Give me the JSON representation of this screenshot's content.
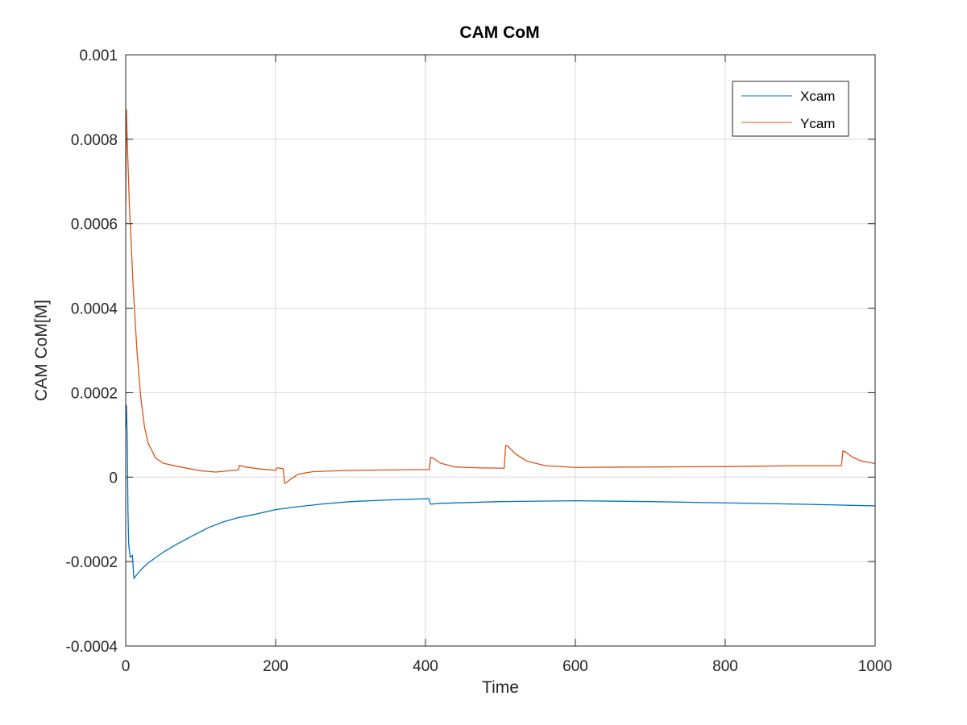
{
  "chart_data": {
    "type": "line",
    "title": "CAM CoM",
    "xlabel": "Time",
    "ylabel": "CAM CoM[M]",
    "xlim": [
      0,
      1000
    ],
    "ylim": [
      -0.0004,
      0.001
    ],
    "xticks": [
      0,
      200,
      400,
      600,
      800,
      1000
    ],
    "xtick_labels": [
      "0",
      "200",
      "400",
      "600",
      "800",
      "1000"
    ],
    "yticks": [
      -0.0004,
      -0.0002,
      0,
      0.0002,
      0.0004,
      0.0006,
      0.0008,
      0.001
    ],
    "ytick_labels": [
      "-0.0004",
      "-0.0002",
      "0",
      "0.0002",
      "0.0004",
      "0.0006",
      "0.0008",
      "0.001"
    ],
    "grid": true,
    "legend_position": "top-right",
    "series": [
      {
        "name": "Xcam",
        "color": "#0072BD",
        "points": [
          [
            0,
            0.00012
          ],
          [
            1,
            0.00017
          ],
          [
            2,
            9e-05
          ],
          [
            3,
            -8e-05
          ],
          [
            4,
            -0.00016
          ],
          [
            6,
            -0.00019
          ],
          [
            9,
            -0.000185
          ],
          [
            10,
            -0.000215
          ],
          [
            11,
            -0.00024
          ],
          [
            13,
            -0.000235
          ],
          [
            20,
            -0.00022
          ],
          [
            30,
            -0.000203
          ],
          [
            50,
            -0.000178
          ],
          [
            70,
            -0.000157
          ],
          [
            90,
            -0.000138
          ],
          [
            110,
            -0.00012
          ],
          [
            130,
            -0.000106
          ],
          [
            150,
            -9.6e-05
          ],
          [
            170,
            -8.9e-05
          ],
          [
            200,
            -7.7e-05
          ],
          [
            230,
            -7e-05
          ],
          [
            260,
            -6.4e-05
          ],
          [
            300,
            -5.8e-05
          ],
          [
            350,
            -5.4e-05
          ],
          [
            405,
            -5.1e-05
          ],
          [
            406,
            -6.1e-05
          ],
          [
            407,
            -6.4e-05
          ],
          [
            420,
            -6.2e-05
          ],
          [
            500,
            -5.8e-05
          ],
          [
            600,
            -5.6e-05
          ],
          [
            700,
            -5.8e-05
          ],
          [
            800,
            -6.1e-05
          ],
          [
            900,
            -6.4e-05
          ],
          [
            1000,
            -6.8e-05
          ]
        ]
      },
      {
        "name": "Ycam",
        "color": "#D95319",
        "points": [
          [
            0,
            0.00065
          ],
          [
            1,
            0.00087
          ],
          [
            2,
            0.0008
          ],
          [
            5,
            0.00064
          ],
          [
            10,
            0.00045
          ],
          [
            15,
            0.0003
          ],
          [
            20,
            0.00019
          ],
          [
            25,
            0.00012
          ],
          [
            30,
            8e-05
          ],
          [
            40,
            4.5e-05
          ],
          [
            50,
            3.3e-05
          ],
          [
            70,
            2.5e-05
          ],
          [
            100,
            1.5e-05
          ],
          [
            120,
            1.2e-05
          ],
          [
            150,
            1.7e-05
          ],
          [
            152,
            2.8e-05
          ],
          [
            160,
            2.4e-05
          ],
          [
            180,
            1.9e-05
          ],
          [
            195,
            1.7e-05
          ],
          [
            200,
            1.6e-05
          ],
          [
            202,
            2.2e-05
          ],
          [
            210,
            2e-05
          ],
          [
            212,
            -1.5e-05
          ],
          [
            215,
            -1.2e-05
          ],
          [
            220,
            -5e-06
          ],
          [
            230,
            7e-06
          ],
          [
            250,
            1.3e-05
          ],
          [
            300,
            1.6e-05
          ],
          [
            350,
            1.7e-05
          ],
          [
            405,
            1.8e-05
          ],
          [
            407,
            4.7e-05
          ],
          [
            410,
            4.5e-05
          ],
          [
            420,
            3.3e-05
          ],
          [
            440,
            2.4e-05
          ],
          [
            470,
            2.2e-05
          ],
          [
            505,
            2.1e-05
          ],
          [
            507,
            7.5e-05
          ],
          [
            510,
            7.3e-05
          ],
          [
            520,
            5.5e-05
          ],
          [
            535,
            3.8e-05
          ],
          [
            560,
            2.7e-05
          ],
          [
            600,
            2.3e-05
          ],
          [
            700,
            2.4e-05
          ],
          [
            800,
            2.5e-05
          ],
          [
            900,
            2.7e-05
          ],
          [
            955,
            2.7e-05
          ],
          [
            957,
            6.2e-05
          ],
          [
            960,
            6e-05
          ],
          [
            970,
            4.7e-05
          ],
          [
            980,
            3.9e-05
          ],
          [
            1000,
            3.2e-05
          ]
        ]
      }
    ]
  }
}
